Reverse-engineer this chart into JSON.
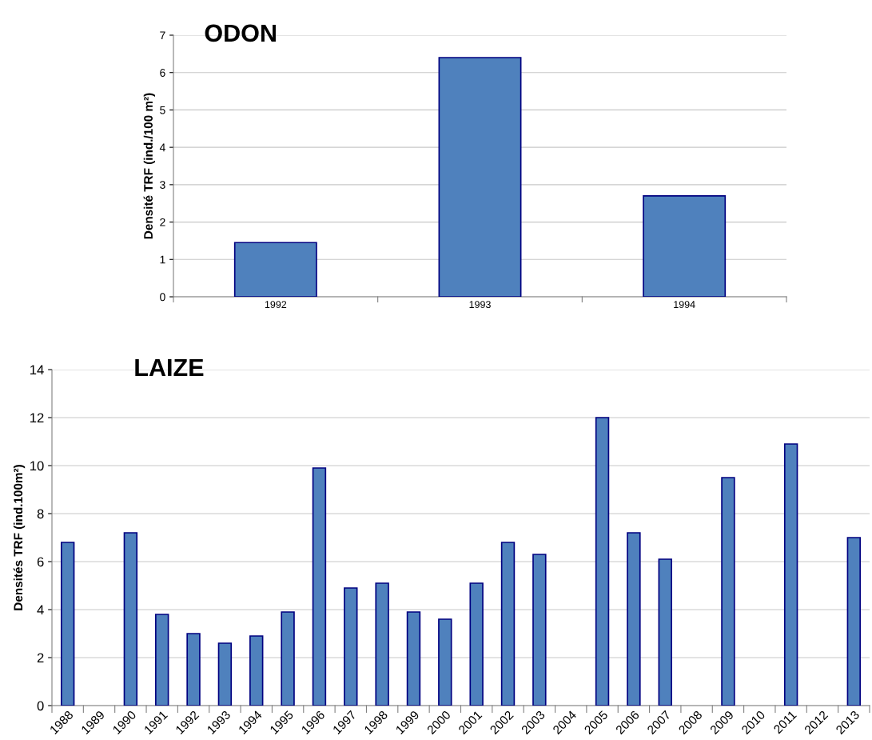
{
  "chart_data": [
    {
      "type": "bar",
      "title": "ODON",
      "ylabel": "Densité TRF (ind./100 m²)",
      "categories": [
        "1992",
        "1993",
        "1994"
      ],
      "series": [
        {
          "color": "#4f81bd",
          "values": [
            1.45,
            6.4,
            2.7
          ]
        }
      ],
      "ylim": [
        0,
        7
      ],
      "yticks": [
        0,
        1,
        2,
        3,
        4,
        5,
        6,
        7
      ],
      "grid": "y"
    },
    {
      "type": "bar",
      "title": "LAIZE",
      "ylabel": "Densités TRF (ind.100m²)",
      "categories": [
        "1988",
        "1989",
        "1990",
        "1991",
        "1992",
        "1993",
        "1994",
        "1995",
        "1996",
        "1997",
        "1998",
        "1999",
        "2000",
        "2001",
        "2002",
        "2003",
        "2004",
        "2005",
        "2006",
        "2007",
        "2008",
        "2009",
        "2010",
        "2011",
        "2012",
        "2013"
      ],
      "series": [
        {
          "color": "#4f81bd",
          "values": [
            6.8,
            null,
            7.2,
            3.8,
            3.0,
            2.6,
            2.9,
            3.9,
            9.9,
            4.9,
            5.1,
            3.9,
            3.6,
            5.1,
            6.8,
            6.3,
            null,
            12.0,
            7.2,
            6.1,
            null,
            9.5,
            null,
            10.9,
            null,
            7.0
          ]
        }
      ],
      "ylim": [
        0,
        14
      ],
      "yticks": [
        0,
        2,
        4,
        6,
        8,
        10,
        12,
        14
      ],
      "grid": "y"
    }
  ]
}
